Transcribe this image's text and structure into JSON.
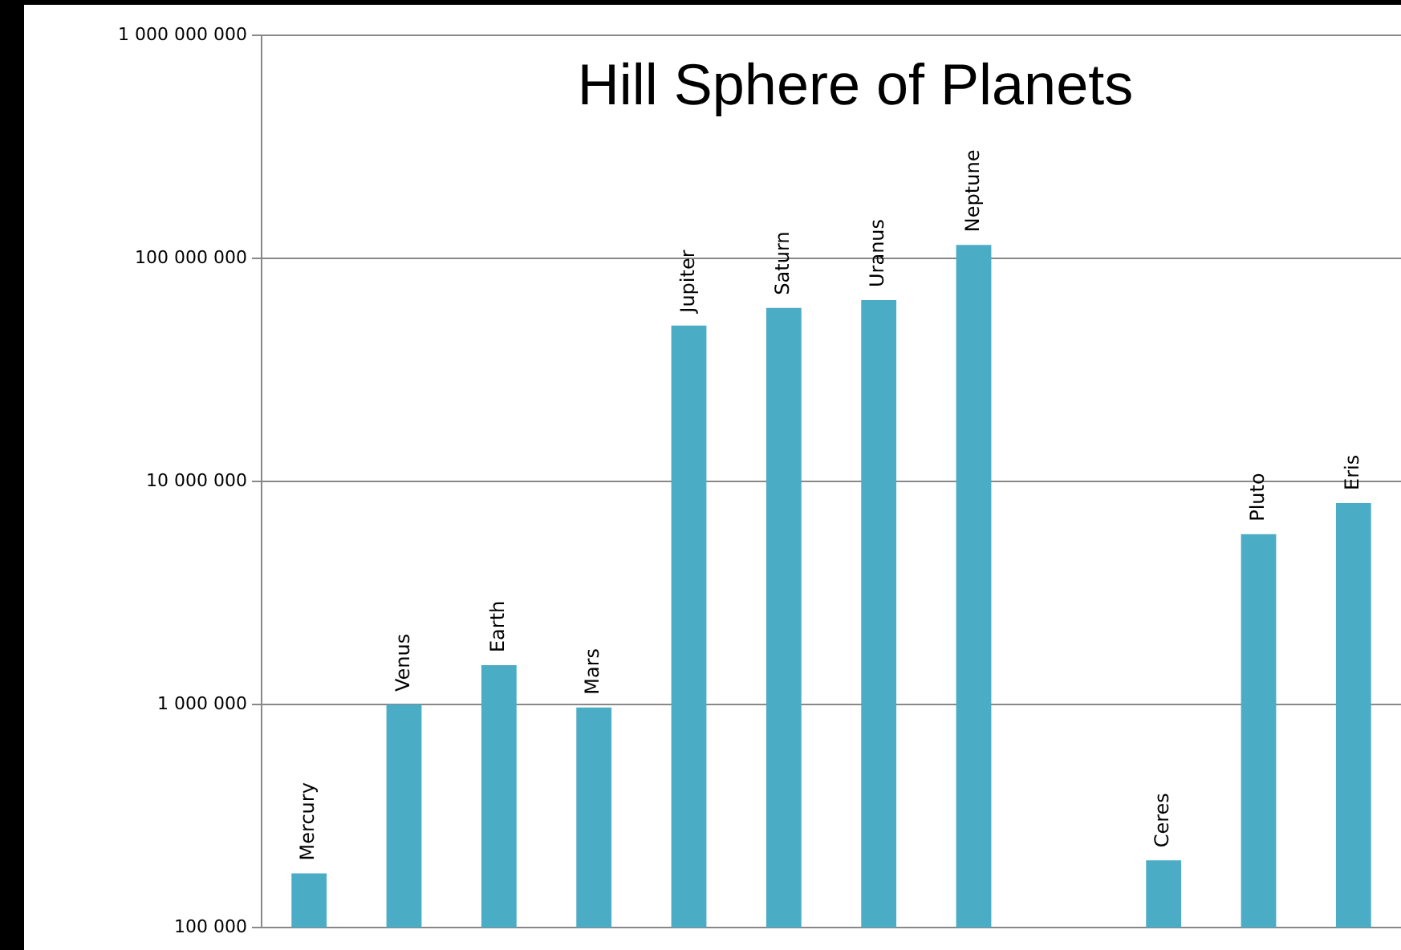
{
  "chart_data": {
    "type": "bar",
    "title": "Hill Sphere of Planets",
    "categories": [
      "Mercury",
      "Venus",
      "Earth",
      "Mars",
      "Jupiter",
      "Saturn",
      "Uranus",
      "Neptune",
      null,
      "Ceres",
      "Pluto",
      "Eris"
    ],
    "values": [
      175000,
      1000000,
      1500000,
      970000,
      50000000,
      60000000,
      65000000,
      115000000,
      null,
      200000,
      5800000,
      8000000
    ],
    "color": "#4bacc6",
    "log": "y",
    "ylim": [
      100000,
      1000000000
    ],
    "yticks": [
      {
        "value": 100000,
        "label": "100 000"
      },
      {
        "value": 1000000,
        "label": "1 000 000"
      },
      {
        "value": 10000000,
        "label": "10 000 000"
      },
      {
        "value": 100000000,
        "label": "100 000 000"
      },
      {
        "value": 1000000000,
        "label": "1 000 000 000"
      }
    ],
    "grid": "y",
    "tick_labels": "y"
  }
}
